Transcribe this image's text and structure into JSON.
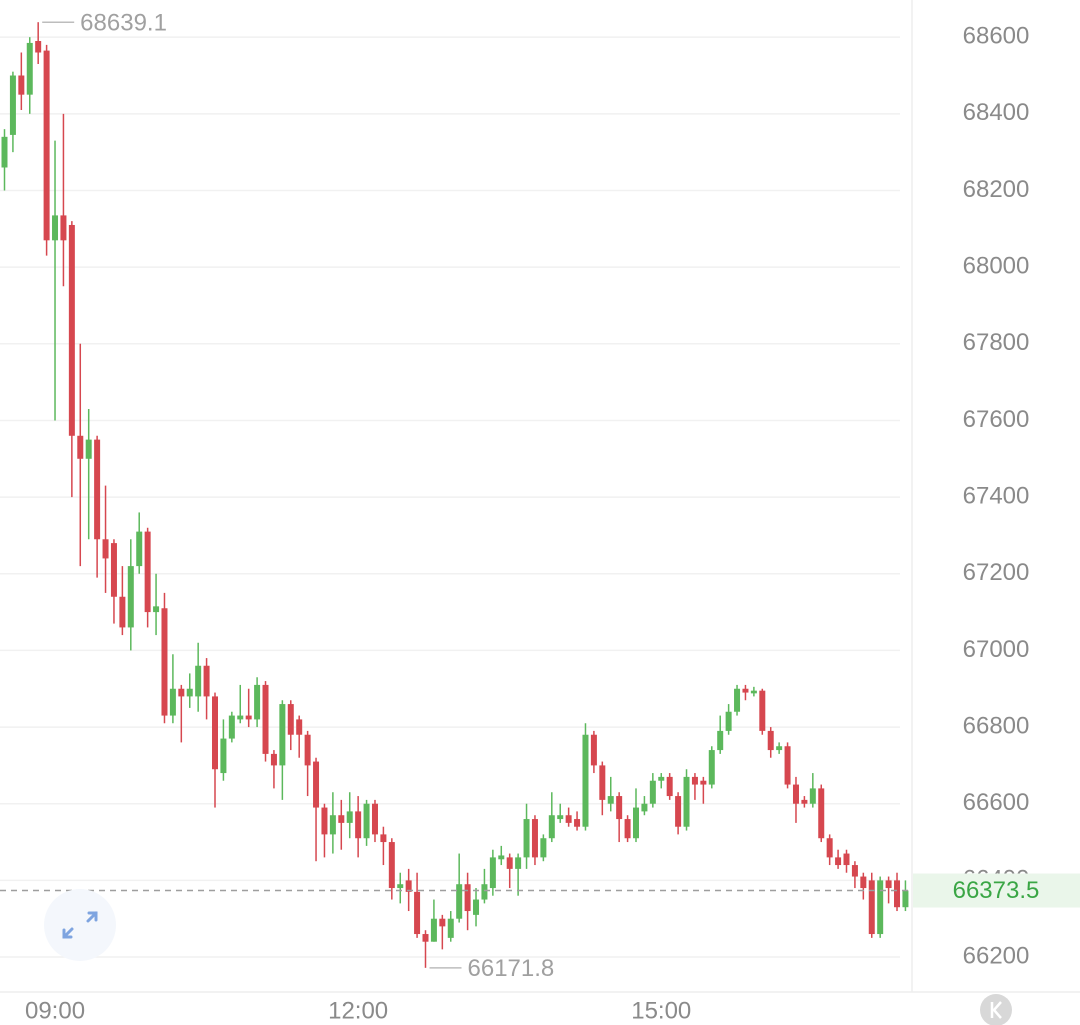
{
  "chart_data": {
    "type": "candlestick",
    "up_color": "#5cb85c",
    "down_color": "#d6474f",
    "grid": true,
    "ylim": [
      66114,
      68697
    ],
    "yticks": [
      66200,
      66400,
      66600,
      66800,
      67000,
      67200,
      67400,
      67600,
      67800,
      68000,
      68200,
      68400,
      68600
    ],
    "categories": [
      null,
      null,
      null,
      null,
      null,
      null,
      "09:00",
      null,
      null,
      null,
      null,
      null,
      null,
      null,
      null,
      null,
      null,
      null,
      null,
      null,
      null,
      null,
      null,
      null,
      null,
      null,
      null,
      null,
      null,
      null,
      null,
      null,
      null,
      null,
      null,
      null,
      null,
      null,
      null,
      null,
      null,
      null,
      "12:00",
      null,
      null,
      null,
      null,
      null,
      null,
      null,
      null,
      null,
      null,
      null,
      null,
      null,
      null,
      null,
      null,
      null,
      null,
      null,
      null,
      null,
      null,
      null,
      null,
      null,
      null,
      null,
      null,
      null,
      null,
      null,
      null,
      null,
      null,
      null,
      "15:00",
      null,
      null,
      null,
      null,
      null,
      null,
      null,
      null,
      null,
      null,
      null,
      null,
      null,
      null,
      null,
      null,
      null,
      null,
      null,
      null,
      null,
      null,
      null,
      null,
      null,
      null,
      null,
      null,
      null
    ],
    "open": [
      68260,
      68345,
      68500,
      68450,
      68590,
      68565,
      68070,
      68135,
      68110,
      67560,
      67500,
      67550,
      67290,
      67280,
      67140,
      67060,
      67220,
      67310,
      67100,
      67110,
      66830,
      66900,
      66880,
      66880,
      66960,
      66880,
      66680,
      66770,
      66820,
      66830,
      66820,
      66910,
      66730,
      66700,
      66860,
      66820,
      66780,
      66710,
      66590,
      66520,
      66570,
      66550,
      66580,
      66510,
      66600,
      66520,
      66500,
      66380,
      66400,
      66370,
      66260,
      66240,
      66300,
      66250,
      66300,
      66390,
      66310,
      66350,
      66380,
      66455,
      66460,
      66430,
      66460,
      66560,
      66460,
      66510,
      66560,
      66570,
      66560,
      66540,
      66780,
      66700,
      66600,
      66620,
      66560,
      66510,
      66580,
      66600,
      66660,
      66670,
      66620,
      66540,
      66670,
      66660,
      66650,
      66740,
      66790,
      66840,
      66900,
      66888,
      66895,
      66790,
      66740,
      66750,
      66650,
      66610,
      66600,
      66640,
      66510,
      66460,
      66470,
      66440,
      66410,
      66400,
      66260,
      66400,
      66400,
      66330
    ],
    "high": [
      68360,
      68510,
      68560,
      68600,
      68639.1,
      68580,
      68330,
      68400,
      68120,
      67800,
      67630,
      67560,
      67430,
      67290,
      67220,
      67290,
      67360,
      67320,
      67200,
      67150,
      66990,
      66910,
      66940,
      67020,
      66980,
      66890,
      66820,
      66840,
      66910,
      66900,
      66930,
      66920,
      66740,
      66870,
      66870,
      66830,
      66790,
      66720,
      66600,
      66630,
      66610,
      66630,
      66620,
      66610,
      66610,
      66540,
      66510,
      66420,
      66430,
      66420,
      66270,
      66350,
      66310,
      66320,
      66470,
      66420,
      66380,
      66430,
      66480,
      66490,
      66470,
      66470,
      66600,
      66570,
      66520,
      66630,
      66600,
      66590,
      66580,
      66810,
      66790,
      66710,
      66670,
      66630,
      66570,
      66640,
      66620,
      66680,
      66680,
      66680,
      66630,
      66690,
      66680,
      66670,
      66750,
      66830,
      66860,
      66910,
      66910,
      66905,
      66900,
      66800,
      66760,
      66760,
      66670,
      66620,
      66680,
      66650,
      66520,
      66480,
      66480,
      66450,
      66420,
      66420,
      66410,
      66410,
      66420,
      66400
    ],
    "low": [
      68200,
      68300,
      68410,
      68400,
      68530,
      68030,
      67600,
      67950,
      67400,
      67220,
      67290,
      67190,
      67150,
      67070,
      67040,
      67000,
      67200,
      67060,
      67040,
      66810,
      66810,
      66760,
      66850,
      66840,
      66820,
      66590,
      66660,
      66760,
      66810,
      66800,
      66800,
      66710,
      66640,
      66610,
      66740,
      66720,
      66620,
      66450,
      66460,
      66470,
      66480,
      66510,
      66460,
      66490,
      66500,
      66440,
      66350,
      66340,
      66320,
      66250,
      66171.8,
      66240,
      66220,
      66240,
      66290,
      66270,
      66280,
      66340,
      66360,
      66440,
      66380,
      66360,
      66430,
      66440,
      66450,
      66500,
      66550,
      66540,
      66530,
      66530,
      66680,
      66570,
      66580,
      66500,
      66500,
      66500,
      66570,
      66590,
      66640,
      66610,
      66520,
      66530,
      66610,
      66600,
      66640,
      66730,
      66780,
      66830,
      66870,
      66880,
      66780,
      66720,
      66730,
      66640,
      66550,
      66590,
      66590,
      66500,
      66440,
      66430,
      66420,
      66380,
      66350,
      66250,
      66250,
      66340,
      66320,
      66320
    ],
    "close": [
      68340,
      68500,
      68450,
      68585,
      68560,
      68070,
      68135,
      68070,
      67560,
      67500,
      67550,
      67290,
      67240,
      67140,
      67060,
      67220,
      67310,
      67100,
      67115,
      66830,
      66900,
      66880,
      66900,
      66960,
      66880,
      66690,
      66770,
      66830,
      66830,
      66820,
      66910,
      66730,
      66700,
      66860,
      66780,
      66780,
      66700,
      66590,
      66520,
      66570,
      66550,
      66580,
      66510,
      66600,
      66520,
      66500,
      66380,
      66390,
      66370,
      66260,
      66240,
      66300,
      66280,
      66300,
      66390,
      66320,
      66350,
      66390,
      66460,
      66465,
      66430,
      66460,
      66560,
      66460,
      66510,
      66570,
      66570,
      66550,
      66540,
      66780,
      66700,
      66610,
      66620,
      66560,
      66510,
      66590,
      66600,
      66660,
      66670,
      66620,
      66540,
      66670,
      66650,
      66650,
      66740,
      66790,
      66840,
      66900,
      66890,
      66895,
      66790,
      66740,
      66750,
      66650,
      66600,
      66600,
      66640,
      66510,
      66460,
      66440,
      66440,
      66410,
      66380,
      66260,
      66400,
      66380,
      66330,
      66373.5
    ]
  }
}
